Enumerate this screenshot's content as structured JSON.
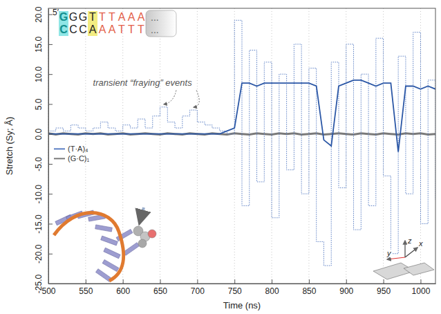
{
  "chart_data": {
    "type": "line",
    "xlabel": "Time (ns)",
    "ylabel": "Stretch (Sy; Å)",
    "x": [
      500,
      510,
      520,
      530,
      540,
      550,
      560,
      570,
      580,
      590,
      600,
      610,
      620,
      630,
      640,
      650,
      660,
      670,
      680,
      690,
      700,
      710,
      720,
      730,
      740,
      750,
      760,
      770,
      780,
      790,
      800,
      810,
      820,
      830,
      840,
      850,
      860,
      870,
      880,
      890,
      900,
      910,
      920,
      930,
      940,
      950,
      960,
      970,
      980,
      990,
      1000,
      1010,
      1020
    ],
    "xlim": [
      500,
      1020
    ],
    "xticks": [
      500,
      550,
      600,
      650,
      700,
      750,
      800,
      850,
      900,
      950,
      1000
    ],
    "ylim": [
      -25,
      21
    ],
    "yticks": [
      {
        "value": -25,
        "label": "-25.0"
      },
      {
        "value": -20,
        "label": "-20.0"
      },
      {
        "value": -15,
        "label": "-15.0"
      },
      {
        "value": -10,
        "label": "-10.0"
      },
      {
        "value": -5,
        "label": "-5.0"
      },
      {
        "value": 0,
        "label": "0.0"
      },
      {
        "value": 5,
        "label": "5.0"
      },
      {
        "value": 10,
        "label": "10.0"
      },
      {
        "value": 15,
        "label": "15.0"
      },
      {
        "value": 20,
        "label": "20.0"
      }
    ],
    "grid": "x",
    "legend": "left",
    "series": [
      {
        "name": "(T·A)₄",
        "color": "#5b7fc4",
        "type": "step",
        "line_style": "dotted",
        "values": [
          0.5,
          1,
          0.5,
          1.5,
          1,
          0.5,
          1,
          2,
          1,
          0.5,
          1.5,
          1,
          2.5,
          1,
          3,
          4.5,
          2,
          1,
          3,
          4,
          2,
          1.5,
          1,
          0.5,
          0,
          19,
          -12,
          14,
          -8,
          12,
          -14,
          10,
          -6,
          15,
          -10,
          11,
          -18,
          -22,
          12,
          -9,
          15,
          -16,
          10,
          -12,
          16,
          -7,
          -20,
          13,
          -10,
          17,
          -15,
          9,
          -11
        ]
      },
      {
        "name": "(G·C)₁",
        "color": "#7a7a7a",
        "type": "line",
        "line_style": "solid",
        "values": [
          0.1,
          -0.1,
          0.1,
          0,
          -0.1,
          0.1,
          0,
          0.1,
          -0.1,
          0,
          0.1,
          -0.1,
          0,
          0.1,
          0,
          -0.1,
          0.1,
          0,
          -0.1,
          0.1,
          0,
          -0.1,
          0.1,
          0,
          -0.1,
          0.1,
          0,
          -0.1,
          0.1,
          0,
          -0.1,
          0.1,
          0,
          0.1,
          -0.1,
          0,
          0.1,
          -0.1,
          0,
          0.1,
          0,
          -0.1,
          0.1,
          0,
          -0.1,
          0.1,
          0,
          -0.1,
          0.1,
          0,
          0.1,
          -0.1,
          0
        ]
      },
      {
        "color": "#2b57a6",
        "type": "line",
        "line_style": "solid",
        "values": [
          0,
          0,
          0,
          0,
          0,
          0,
          0,
          0,
          0,
          0,
          0,
          0,
          0,
          0,
          0,
          0,
          0,
          0,
          0,
          0,
          0,
          0,
          0,
          0,
          0.5,
          1,
          8.5,
          8.5,
          8,
          8.5,
          8.5,
          8.5,
          8.5,
          8.5,
          8.5,
          8.5,
          8,
          -1,
          -2,
          8,
          8.5,
          9,
          9,
          8.5,
          8,
          8.5,
          8.5,
          -3,
          8,
          8,
          7.5,
          8,
          7.5
        ]
      }
    ],
    "annotations": {
      "fraying": "transient “fraying” events",
      "sequence": {
        "prime": "5′",
        "top": "GGGTTTAAA",
        "bottom": "CCCAAATTT",
        "ellipsis": "..."
      },
      "axes_inset": [
        "z",
        "x",
        "y"
      ]
    }
  }
}
